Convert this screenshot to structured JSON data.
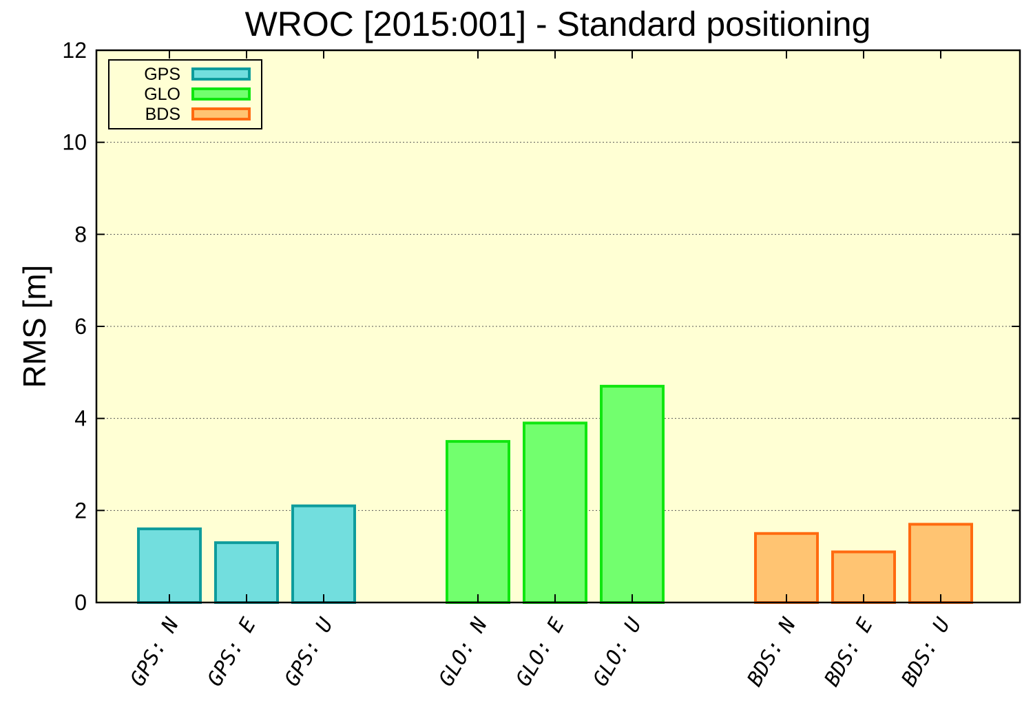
{
  "chart_data": {
    "type": "bar",
    "title": "WROC [2015:001] - Standard positioning",
    "xlabel": "",
    "ylabel": "RMS [m]",
    "ylim": [
      0,
      12
    ],
    "yticks": [
      "0",
      "2",
      "4",
      "6",
      "8",
      "10",
      "12"
    ],
    "grid": "horizontal dotted",
    "legend_position": "top-left",
    "background_color": "#ffffd4",
    "groups": [
      {
        "name": "GPS",
        "fill": "#72dede",
        "stroke": "#0e9c9c",
        "categories": [
          "GPS: N",
          "GPS: E",
          "GPS: U"
        ],
        "values": [
          1.6,
          1.3,
          2.1
        ]
      },
      {
        "name": "GLO",
        "fill": "#72ff6e",
        "stroke": "#10e610",
        "categories": [
          "GLO: N",
          "GLO: E",
          "GLO: U"
        ],
        "values": [
          3.5,
          3.9,
          4.7
        ]
      },
      {
        "name": "BDS",
        "fill": "#ffc472",
        "stroke": "#ff6a10",
        "categories": [
          "BDS: N",
          "BDS: E",
          "BDS: U"
        ],
        "values": [
          1.5,
          1.1,
          1.7
        ]
      }
    ]
  }
}
